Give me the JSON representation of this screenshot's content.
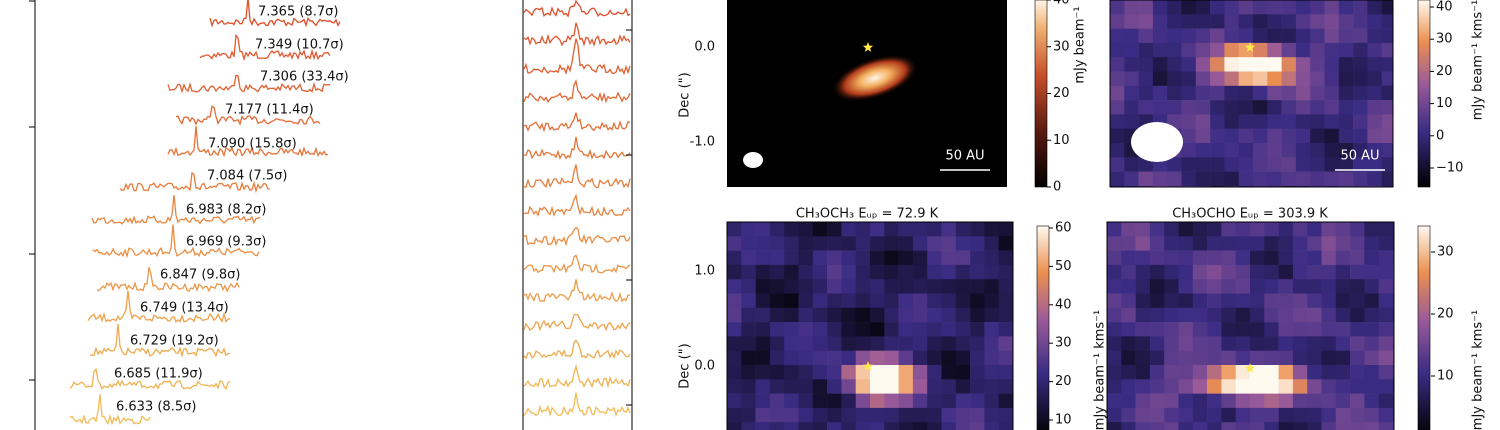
{
  "spectra": {
    "labels": [
      "7.365 (8.7σ)",
      "7.349 (10.7σ)",
      "7.306 (33.4σ)",
      "7.177 (11.4σ)",
      "7.090 (15.8σ)",
      "7.084 (7.5σ)",
      "6.983 (8.2σ)",
      "6.969 (9.3σ)",
      "6.847 (9.8σ)",
      "6.749 (13.4σ)",
      "6.729 (19.2σ)",
      "6.685 (11.9σ)",
      "6.633 (8.5σ)"
    ]
  },
  "maps": {
    "y_label": "Dec (\")",
    "panels": [
      {
        "yticks": [
          "0.0",
          "-1.0"
        ],
        "scale_label": "50 AU",
        "colorbar_label": "mJy beam⁻¹",
        "colorbar_ticks": [
          "0",
          "10",
          "20",
          "30",
          "40"
        ]
      },
      {
        "scale_label": "50 AU",
        "colorbar_label": "mJy beam⁻¹ kms⁻¹",
        "colorbar_ticks": [
          "−10",
          "0",
          "10",
          "20",
          "30",
          "40"
        ]
      },
      {
        "title": "CH₃OCH₃ Eᵤₚ = 72.9 K",
        "yticks": [
          "1.0",
          "0.0"
        ],
        "colorbar_label": "mJy beam⁻¹ kms⁻¹",
        "colorbar_ticks": [
          "10",
          "20",
          "30",
          "40",
          "50",
          "60"
        ]
      },
      {
        "title": "CH₃OCHO Eᵤₚ = 303.9 K",
        "colorbar_label": "mJy beam⁻¹ kms⁻¹",
        "colorbar_ticks": [
          "10",
          "20",
          "30"
        ]
      }
    ]
  }
}
